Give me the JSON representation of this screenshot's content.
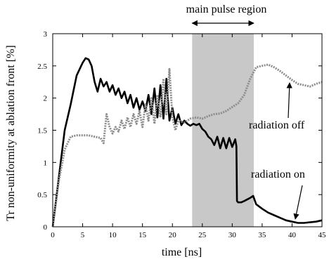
{
  "chart_data": {
    "type": "line",
    "title": "",
    "xlabel": "time [ns]",
    "ylabel": "Tr non-uniformity at ablation front [%]",
    "xlim": [
      0,
      45
    ],
    "ylim": [
      0,
      3
    ],
    "grid": false,
    "xticks": [
      0,
      5,
      10,
      15,
      20,
      25,
      30,
      35,
      40,
      45
    ],
    "xtick_labels": [
      "0",
      "5",
      "10",
      "15",
      "20",
      "25",
      "30",
      "35",
      "40",
      "45"
    ],
    "yticks": [
      0,
      0.5,
      1,
      1.5,
      2,
      2.5,
      3
    ],
    "ytick_labels": [
      "0",
      "0.5",
      "1",
      "1.5",
      "2",
      "2.5",
      "3"
    ],
    "shaded_region": {
      "x": [
        23.3,
        33.6
      ],
      "color": "#c8c8c8",
      "label": "main pulse region"
    },
    "series": [
      {
        "name": "radiation on",
        "style": "solid",
        "color": "#000000",
        "x": [
          0,
          1,
          2,
          3,
          4,
          5,
          5.5,
          6,
          6.5,
          7,
          7.5,
          8,
          8.5,
          9,
          9.5,
          10,
          10.5,
          11,
          11.5,
          12,
          12.5,
          13,
          13.5,
          14,
          14.5,
          15,
          15.5,
          16,
          16.5,
          17,
          17.5,
          18,
          18.5,
          19,
          19.5,
          20,
          20.5,
          21,
          21.5,
          22,
          22.5,
          23,
          23.5,
          24,
          24.5,
          25,
          25.5,
          26,
          26.5,
          27,
          27.5,
          28,
          28.5,
          29,
          29.5,
          30,
          30.5,
          30.7,
          30.8,
          31,
          31.5,
          32,
          33,
          33.5,
          34,
          35,
          36,
          37,
          38,
          39,
          40,
          41,
          42,
          43,
          44,
          45
        ],
        "y": [
          0,
          0.75,
          1.5,
          1.9,
          2.35,
          2.55,
          2.62,
          2.6,
          2.5,
          2.25,
          2.1,
          2.3,
          2.18,
          2.25,
          2.1,
          2.2,
          2.05,
          2.15,
          2.0,
          2.1,
          1.92,
          2.05,
          1.85,
          2.0,
          1.82,
          1.95,
          1.8,
          2.05,
          1.75,
          2.15,
          1.7,
          2.2,
          1.68,
          2.3,
          1.65,
          1.85,
          1.6,
          1.75,
          1.58,
          1.65,
          1.6,
          1.57,
          1.6,
          1.58,
          1.6,
          1.52,
          1.48,
          1.4,
          1.36,
          1.27,
          1.4,
          1.22,
          1.38,
          1.22,
          1.38,
          1.24,
          1.36,
          1.25,
          0.4,
          0.38,
          0.38,
          0.4,
          0.45,
          0.48,
          0.35,
          0.28,
          0.22,
          0.18,
          0.14,
          0.1,
          0.08,
          0.06,
          0.06,
          0.07,
          0.08,
          0.1
        ]
      },
      {
        "name": "radiation off",
        "style": "dashed",
        "color": "#8c8c8c",
        "x": [
          0,
          1,
          2,
          3,
          4,
          5,
          6,
          7,
          8,
          8.5,
          9,
          9.5,
          10,
          10.5,
          11,
          11.5,
          12,
          12.5,
          13,
          13.5,
          14,
          14.5,
          15,
          15.5,
          16,
          16.5,
          17,
          17.5,
          18,
          18.5,
          19,
          19.5,
          20,
          20.5,
          21,
          22,
          23,
          24,
          25,
          26,
          27,
          28,
          29,
          30,
          31,
          32,
          33,
          34,
          35,
          36,
          37,
          38,
          39,
          40,
          41,
          42,
          43,
          44,
          45
        ],
        "y": [
          0,
          0.7,
          1.2,
          1.4,
          1.42,
          1.42,
          1.42,
          1.4,
          1.38,
          1.3,
          1.75,
          1.55,
          1.45,
          1.55,
          1.48,
          1.65,
          1.52,
          1.7,
          1.55,
          1.75,
          1.6,
          1.8,
          1.55,
          1.9,
          1.65,
          2.0,
          1.6,
          2.05,
          1.7,
          2.3,
          1.75,
          2.45,
          1.7,
          1.5,
          1.65,
          1.62,
          1.68,
          1.7,
          1.68,
          1.72,
          1.75,
          1.76,
          1.8,
          1.86,
          1.92,
          2.05,
          2.3,
          2.48,
          2.5,
          2.52,
          2.48,
          2.42,
          2.35,
          2.28,
          2.22,
          2.2,
          2.18,
          2.22,
          2.25
        ]
      }
    ],
    "annotations": [
      {
        "text": "main pulse region"
      },
      {
        "text": "radiation off"
      },
      {
        "text": "radiation on"
      }
    ]
  }
}
